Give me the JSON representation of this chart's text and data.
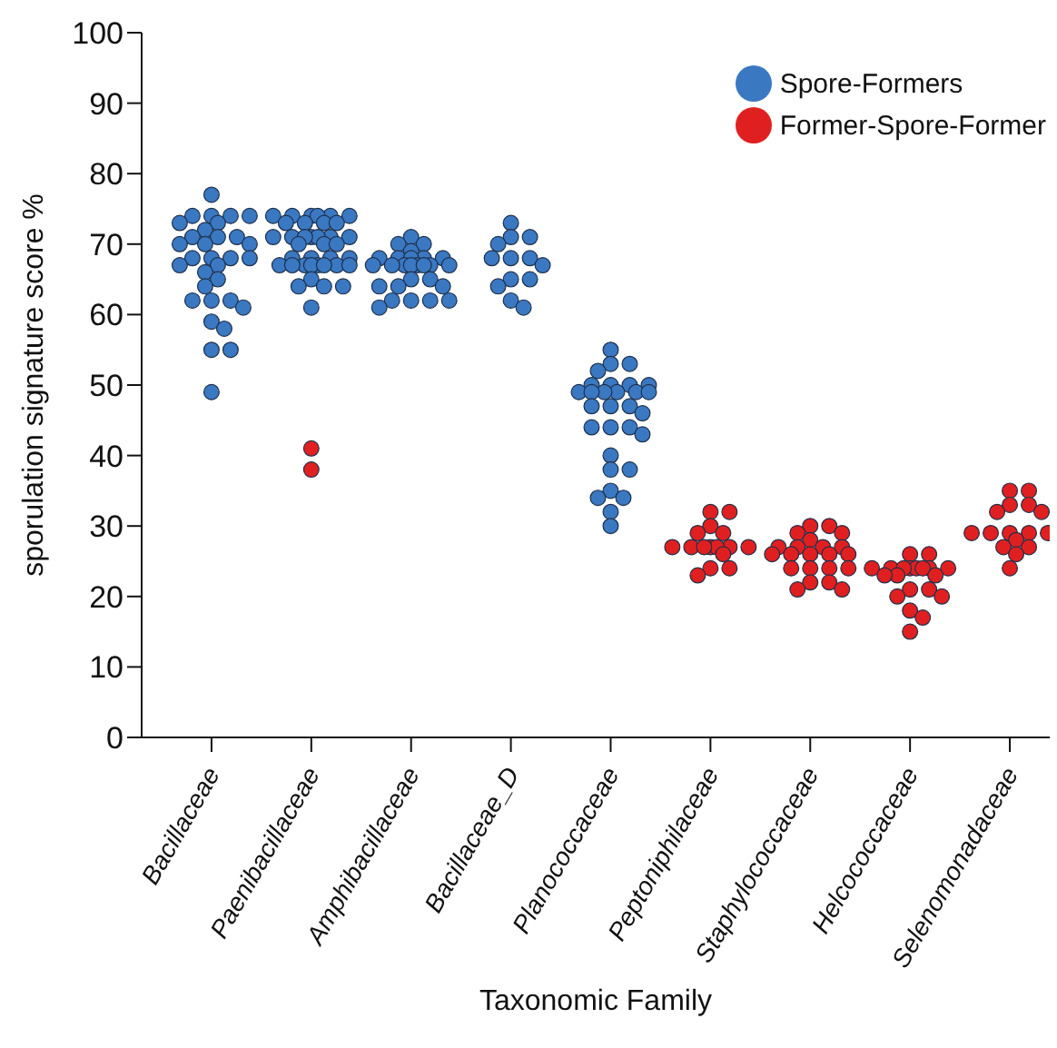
{
  "chart_data": {
    "type": "scatter",
    "xlabel": "Taxonomic Family",
    "ylabel": "sporulation signature score %",
    "categories": [
      "Bacillaceae",
      "Paenibacillaceae",
      "Amphibacillaceae",
      "Bacillaceae_D",
      "Planococcaceae",
      "Peptoniphilaceae",
      "Staphylococcaceae",
      "Helcococcaceae",
      "Selenomonadaceae"
    ],
    "ylim": [
      0,
      100
    ],
    "yticks": [
      0,
      10,
      20,
      30,
      40,
      50,
      60,
      70,
      80,
      90,
      100
    ],
    "grid": false,
    "legend": "top right",
    "marker": "circle",
    "series": [
      {
        "name": "Spore-Formers",
        "color": "#3a78c2",
        "x": [
          "Bacillaceae",
          "Bacillaceae",
          "Bacillaceae",
          "Bacillaceae",
          "Bacillaceae",
          "Bacillaceae",
          "Bacillaceae",
          "Bacillaceae",
          "Bacillaceae",
          "Bacillaceae",
          "Bacillaceae",
          "Bacillaceae",
          "Bacillaceae",
          "Bacillaceae",
          "Bacillaceae",
          "Bacillaceae",
          "Bacillaceae",
          "Bacillaceae",
          "Bacillaceae",
          "Bacillaceae",
          "Bacillaceae",
          "Bacillaceae",
          "Bacillaceae",
          "Bacillaceae",
          "Bacillaceae",
          "Bacillaceae",
          "Bacillaceae",
          "Bacillaceae",
          "Bacillaceae",
          "Bacillaceae",
          "Bacillaceae",
          "Bacillaceae",
          "Paenibacillaceae",
          "Paenibacillaceae",
          "Paenibacillaceae",
          "Paenibacillaceae",
          "Paenibacillaceae",
          "Paenibacillaceae",
          "Paenibacillaceae",
          "Paenibacillaceae",
          "Paenibacillaceae",
          "Paenibacillaceae",
          "Paenibacillaceae",
          "Paenibacillaceae",
          "Paenibacillaceae",
          "Paenibacillaceae",
          "Paenibacillaceae",
          "Paenibacillaceae",
          "Paenibacillaceae",
          "Paenibacillaceae",
          "Paenibacillaceae",
          "Paenibacillaceae",
          "Paenibacillaceae",
          "Paenibacillaceae",
          "Paenibacillaceae",
          "Paenibacillaceae",
          "Paenibacillaceae",
          "Paenibacillaceae",
          "Paenibacillaceae",
          "Paenibacillaceae",
          "Paenibacillaceae",
          "Paenibacillaceae",
          "Paenibacillaceae",
          "Paenibacillaceae",
          "Paenibacillaceae",
          "Paenibacillaceae",
          "Paenibacillaceae",
          "Paenibacillaceae",
          "Paenibacillaceae",
          "Amphibacillaceae",
          "Amphibacillaceae",
          "Amphibacillaceae",
          "Amphibacillaceae",
          "Amphibacillaceae",
          "Amphibacillaceae",
          "Amphibacillaceae",
          "Amphibacillaceae",
          "Amphibacillaceae",
          "Amphibacillaceae",
          "Amphibacillaceae",
          "Amphibacillaceae",
          "Amphibacillaceae",
          "Amphibacillaceae",
          "Amphibacillaceae",
          "Amphibacillaceae",
          "Amphibacillaceae",
          "Amphibacillaceae",
          "Amphibacillaceae",
          "Amphibacillaceae",
          "Amphibacillaceae",
          "Amphibacillaceae",
          "Amphibacillaceae",
          "Amphibacillaceae",
          "Amphibacillaceae",
          "Amphibacillaceae",
          "Amphibacillaceae",
          "Bacillaceae_D",
          "Bacillaceae_D",
          "Bacillaceae_D",
          "Bacillaceae_D",
          "Bacillaceae_D",
          "Bacillaceae_D",
          "Bacillaceae_D",
          "Bacillaceae_D",
          "Bacillaceae_D",
          "Bacillaceae_D",
          "Bacillaceae_D",
          "Bacillaceae_D",
          "Bacillaceae_D",
          "Planococcaceae",
          "Planococcaceae",
          "Planococcaceae",
          "Planococcaceae",
          "Planococcaceae",
          "Planococcaceae",
          "Planococcaceae",
          "Planococcaceae",
          "Planococcaceae",
          "Planococcaceae",
          "Planococcaceae",
          "Planococcaceae",
          "Planococcaceae",
          "Planococcaceae",
          "Planococcaceae",
          "Planococcaceae",
          "Planococcaceae",
          "Planococcaceae",
          "Planococcaceae",
          "Planococcaceae",
          "Planococcaceae",
          "Planococcaceae",
          "Planococcaceae",
          "Planococcaceae",
          "Planococcaceae",
          "Planococcaceae",
          "Planococcaceae",
          "Planococcaceae",
          "Planococcaceae",
          "Planococcaceae"
        ],
        "values": [
          77,
          74,
          74,
          74,
          74,
          73,
          73,
          72,
          71,
          71,
          71,
          70,
          70,
          70,
          68,
          68,
          68,
          68,
          67,
          67,
          66,
          65,
          64,
          62,
          62,
          62,
          61,
          59,
          58,
          55,
          55,
          49,
          74,
          74,
          74,
          74,
          74,
          74,
          73,
          73,
          73,
          73,
          71,
          71,
          71,
          71,
          71,
          71,
          71,
          70,
          70,
          70,
          68,
          68,
          68,
          68,
          67,
          67,
          67,
          67,
          67,
          67,
          67,
          67,
          65,
          64,
          64,
          64,
          61,
          71,
          70,
          70,
          69,
          68,
          68,
          68,
          68,
          68,
          67,
          67,
          67,
          67,
          67,
          67,
          67,
          67,
          65,
          65,
          64,
          64,
          64,
          62,
          62,
          62,
          62,
          61,
          73,
          71,
          71,
          70,
          68,
          68,
          68,
          67,
          65,
          65,
          64,
          62,
          61,
          55,
          53,
          53,
          52,
          50,
          50,
          50,
          50,
          49,
          49,
          49,
          49,
          49,
          49,
          47,
          47,
          47,
          46,
          44,
          44,
          44,
          43,
          40,
          38,
          38,
          35,
          34,
          34,
          32,
          30
        ]
      },
      {
        "name": "Former-Spore-Former",
        "color": "#e02020",
        "x": [
          "Paenibacillaceae",
          "Paenibacillaceae",
          "Peptoniphilaceae",
          "Peptoniphilaceae",
          "Peptoniphilaceae",
          "Peptoniphilaceae",
          "Peptoniphilaceae",
          "Peptoniphilaceae",
          "Peptoniphilaceae",
          "Peptoniphilaceae",
          "Peptoniphilaceae",
          "Peptoniphilaceae",
          "Peptoniphilaceae",
          "Peptoniphilaceae",
          "Peptoniphilaceae",
          "Peptoniphilaceae",
          "Peptoniphilaceae",
          "Peptoniphilaceae",
          "Staphylococcaceae",
          "Staphylococcaceae",
          "Staphylococcaceae",
          "Staphylococcaceae",
          "Staphylococcaceae",
          "Staphylococcaceae",
          "Staphylococcaceae",
          "Staphylococcaceae",
          "Staphylococcaceae",
          "Staphylococcaceae",
          "Staphylococcaceae",
          "Staphylococcaceae",
          "Staphylococcaceae",
          "Staphylococcaceae",
          "Staphylococcaceae",
          "Staphylococcaceae",
          "Staphylococcaceae",
          "Staphylococcaceae",
          "Staphylococcaceae",
          "Staphylococcaceae",
          "Staphylococcaceae",
          "Staphylococcaceae",
          "Helcococcaceae",
          "Helcococcaceae",
          "Helcococcaceae",
          "Helcococcaceae",
          "Helcococcaceae",
          "Helcococcaceae",
          "Helcococcaceae",
          "Helcococcaceae",
          "Helcococcaceae",
          "Helcococcaceae",
          "Helcococcaceae",
          "Helcococcaceae",
          "Helcococcaceae",
          "Helcococcaceae",
          "Helcococcaceae",
          "Helcococcaceae",
          "Helcococcaceae",
          "Helcococcaceae",
          "Helcococcaceae",
          "Helcococcaceae",
          "Selenomonadaceae",
          "Selenomonadaceae",
          "Selenomonadaceae",
          "Selenomonadaceae",
          "Selenomonadaceae",
          "Selenomonadaceae",
          "Selenomonadaceae",
          "Selenomonadaceae",
          "Selenomonadaceae",
          "Selenomonadaceae",
          "Selenomonadaceae",
          "Selenomonadaceae",
          "Selenomonadaceae",
          "Selenomonadaceae",
          "Selenomonadaceae",
          "Selenomonadaceae"
        ],
        "values": [
          38,
          41,
          32,
          32,
          30,
          29,
          29,
          27,
          27,
          27,
          27,
          27,
          27,
          27,
          26,
          24,
          24,
          23,
          30,
          30,
          29,
          29,
          28,
          27,
          27,
          27,
          27,
          26,
          26,
          26,
          26,
          26,
          24,
          24,
          24,
          24,
          22,
          22,
          21,
          21,
          26,
          26,
          24,
          24,
          24,
          24,
          24,
          24,
          24,
          24,
          23,
          23,
          23,
          21,
          21,
          20,
          20,
          18,
          17,
          15,
          35,
          35,
          33,
          33,
          32,
          32,
          29,
          29,
          29,
          29,
          29,
          28,
          27,
          27,
          26,
          24
        ]
      }
    ]
  }
}
